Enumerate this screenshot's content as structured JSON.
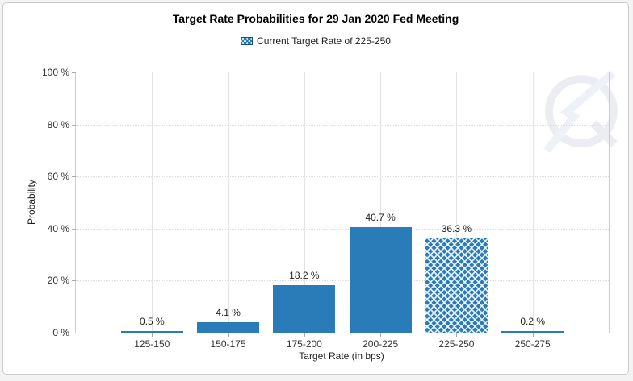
{
  "header": {
    "title": "Target Rate Probabilities for 29 Jan 2020 Fed Meeting"
  },
  "legend": {
    "swatch": "crosshatch-swatch",
    "label": "Current Target Rate of 225-250"
  },
  "chart_data": {
    "type": "bar",
    "title": "Target Rate Probabilities for 29 Jan 2020 Fed Meeting",
    "categories": [
      "125-150",
      "150-175",
      "175-200",
      "200-225",
      "225-250",
      "250-275"
    ],
    "values": [
      0.5,
      4.1,
      18.2,
      40.7,
      36.3,
      0.2
    ],
    "value_labels": [
      "0.5 %",
      "4.1 %",
      "18.2 %",
      "40.7 %",
      "36.3 %",
      "0.2 %"
    ],
    "hatched_index": 4,
    "hatched_category": "225-250",
    "xlabel": "Target Rate (in bps)",
    "ylabel": "Probability",
    "ylim": [
      0,
      100
    ],
    "yticks": [
      0,
      20,
      40,
      60,
      80,
      100
    ],
    "ytick_labels": [
      "0 %",
      "20 %",
      "40 %",
      "60 %",
      "80 %",
      "100 %"
    ],
    "legend_position": "top-center",
    "legend_entries": [
      "Current Target Rate of 225-250"
    ],
    "grid": {
      "horizontal": "dotted at every 20%",
      "vertical": "solid faint line at each category center"
    },
    "colors": {
      "bar": "#2a7cb8",
      "hatch_line": "#ffffff",
      "legend_swatch_border": "#1d4e79",
      "frame": "#cccccc",
      "grid": "#dcdcdc",
      "text": "#333333",
      "title": "#000000",
      "watermark": "#e9ecf2",
      "card_background": "#ffffff",
      "page_background": "#f3f3f3"
    },
    "watermark": "circular logo with lightning bolt (Q mark)"
  }
}
